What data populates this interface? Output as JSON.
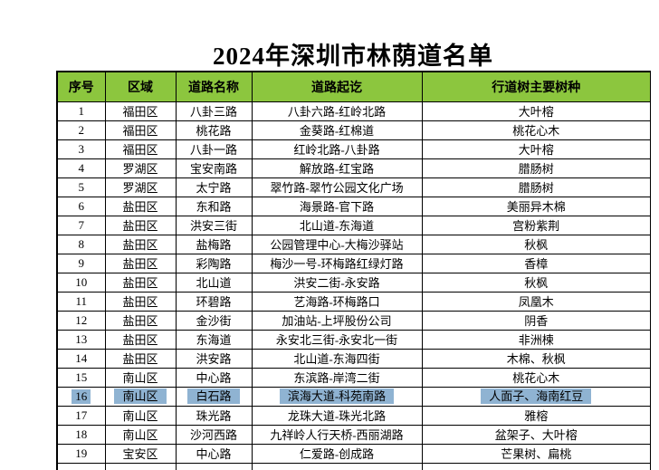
{
  "title": "2024年深圳市林荫道名单",
  "colors": {
    "header_bg": "#8CC63E",
    "selection_highlight": "#8FB3D2",
    "border": "#000000"
  },
  "table": {
    "headers": [
      "序号",
      "区域",
      "道路名称",
      "道路起讫",
      "行道树主要树种"
    ],
    "highlighted_row_no": 16,
    "rows": [
      {
        "no": "1",
        "district": "福田区",
        "road": "八卦三路",
        "section": "八卦六路-红岭北路",
        "species": "大叶榕"
      },
      {
        "no": "2",
        "district": "福田区",
        "road": "桃花路",
        "section": "金葵路-红棉道",
        "species": "桃花心木"
      },
      {
        "no": "3",
        "district": "福田区",
        "road": "八卦一路",
        "section": "红岭北路-八卦路",
        "species": "大叶榕"
      },
      {
        "no": "4",
        "district": "罗湖区",
        "road": "宝安南路",
        "section": "解放路-红宝路",
        "species": "腊肠树"
      },
      {
        "no": "5",
        "district": "罗湖区",
        "road": "太宁路",
        "section": "翠竹路-翠竹公园文化广场",
        "species": "腊肠树"
      },
      {
        "no": "6",
        "district": "盐田区",
        "road": "东和路",
        "section": "海景路-官下路",
        "species": "美丽异木棉"
      },
      {
        "no": "7",
        "district": "盐田区",
        "road": "洪安三街",
        "section": "北山道-东海道",
        "species": "宫粉紫荆"
      },
      {
        "no": "8",
        "district": "盐田区",
        "road": "盐梅路",
        "section": "公园管理中心-大梅沙驿站",
        "species": "秋枫"
      },
      {
        "no": "9",
        "district": "盐田区",
        "road": "彩陶路",
        "section": "梅沙一号-环梅路红绿灯路",
        "species": "香樟"
      },
      {
        "no": "10",
        "district": "盐田区",
        "road": "北山道",
        "section": "洪安二街-永安路",
        "species": "秋枫"
      },
      {
        "no": "11",
        "district": "盐田区",
        "road": "环碧路",
        "section": "艺海路-环梅路口",
        "species": "凤凰木"
      },
      {
        "no": "12",
        "district": "盐田区",
        "road": "金沙街",
        "section": "加油站-上坪股份公司",
        "species": "阴香"
      },
      {
        "no": "13",
        "district": "盐田区",
        "road": "东海道",
        "section": "永安北三街-永安北一街",
        "species": "非洲楝"
      },
      {
        "no": "14",
        "district": "盐田区",
        "road": "洪安路",
        "section": "北山道-东海四街",
        "species": "木棉、秋枫"
      },
      {
        "no": "15",
        "district": "南山区",
        "road": "中心路",
        "section": "东滨路-岸湾二街",
        "species": "桃花心木"
      },
      {
        "no": "16",
        "district": "南山区",
        "road": "白石路",
        "section": "滨海大道-科苑南路",
        "species": "人面子、海南红豆"
      },
      {
        "no": "17",
        "district": "南山区",
        "road": "珠光路",
        "section": "龙珠大道-珠光北路",
        "species": "雅榕"
      },
      {
        "no": "18",
        "district": "南山区",
        "road": "沙河西路",
        "section": "九祥岭人行天桥-西丽湖路",
        "species": "盆架子、大叶榕"
      },
      {
        "no": "19",
        "district": "宝安区",
        "road": "中心路",
        "section": "仁爱路-创成路",
        "species": "芒果树、扁桃"
      }
    ]
  }
}
